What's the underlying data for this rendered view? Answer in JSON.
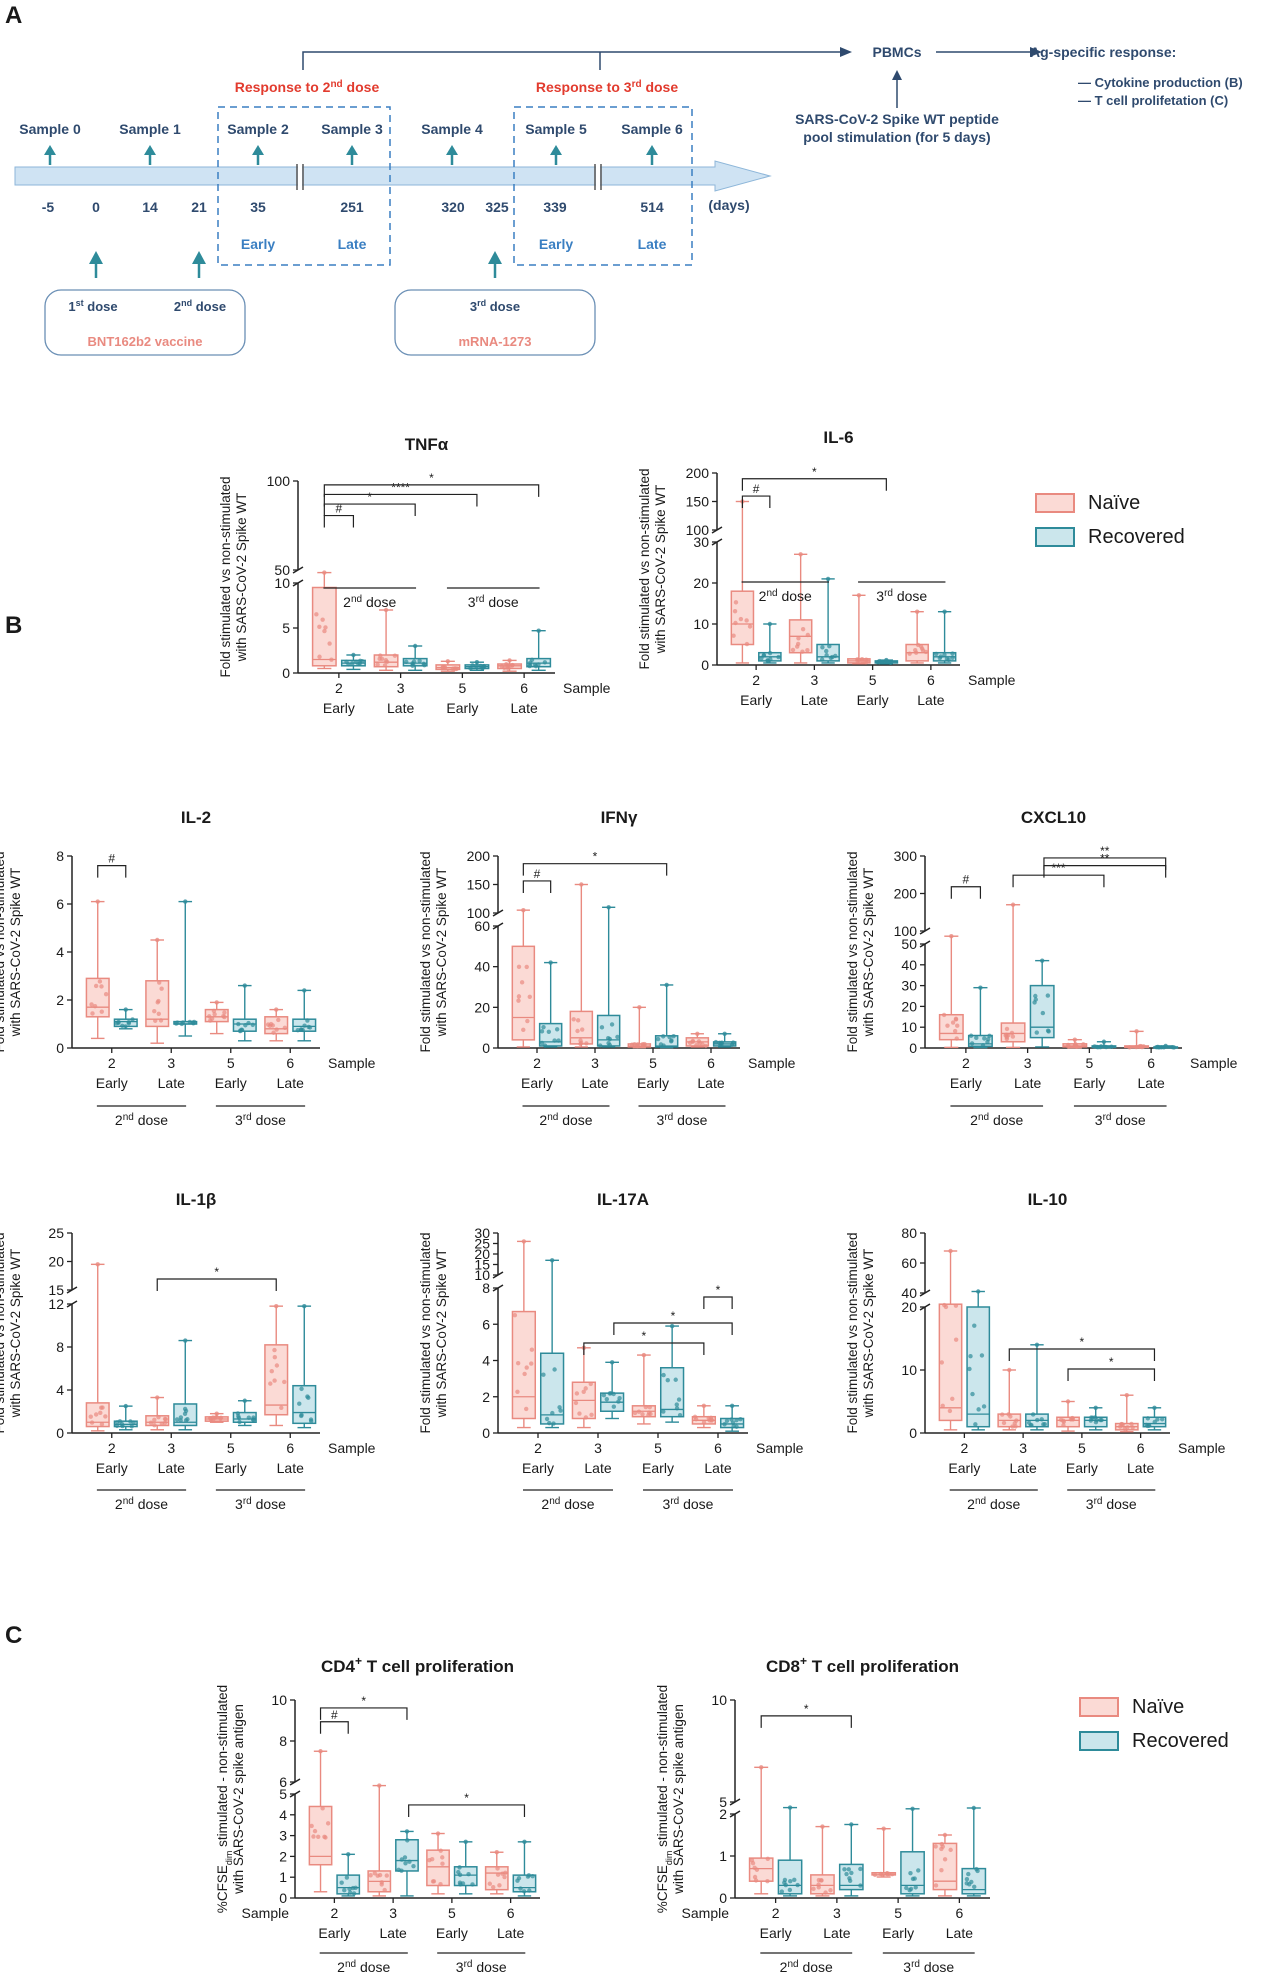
{
  "figure": {
    "panel_labels": [
      "A",
      "B",
      "C"
    ],
    "colors": {
      "naive": "#e98a80",
      "naive_fill": "#fbdad5",
      "recovered": "#2e8b9a",
      "recovered_fill": "#cbe6ec",
      "timeline_text": "#2f4a6e",
      "accent_red": "#e23b2e",
      "accent_blue": "#3a7fc2",
      "arrow": "#2e8b9a"
    }
  },
  "timeline": {
    "samples": [
      "Sample 0",
      "Sample 1",
      "Sample 2",
      "Sample 3",
      "Sample 4",
      "Sample 5",
      "Sample 6"
    ],
    "days": [
      "-5",
      "0",
      "14",
      "21",
      "35",
      "251",
      "320",
      "325",
      "339",
      "514"
    ],
    "days_unit": "(days)",
    "early_late": [
      "Early",
      "Late",
      "Early",
      "Late"
    ],
    "response_2nd": {
      "pre": "Response to 2",
      "sup": "nd",
      "post": " dose"
    },
    "response_3rd": {
      "pre": "Response to 3",
      "sup": "rd",
      "post": " dose"
    },
    "dose1": {
      "pre": "1",
      "sup": "st",
      "post": " dose"
    },
    "dose2": {
      "pre": "2",
      "sup": "nd",
      "post": " dose"
    },
    "dose3": {
      "pre": "3",
      "sup": "rd",
      "post": " dose"
    },
    "vaccine1": "BNT162b2 vaccine",
    "vaccine2": "mRNA-1273",
    "pbmcs": "PBMCs",
    "ag_response": "Ag-specific response:",
    "cytokine": "— Cytokine production (B)",
    "tcell": "— T cell prolifetation (C)",
    "stim_line1": "SARS-CoV-2 Spike WT peptide",
    "stim_line2": "pool stimulation (for 5 days)"
  },
  "common": {
    "ylabel_fold_1": "Fold stimulated vs non-stimulated",
    "ylabel_fold_2": "with SARS-CoV-2 Spike WT",
    "ylabel_cfse_1_pre": "%CFSE",
    "ylabel_cfse_1_sub": "dim",
    "ylabel_cfse_1_post": " stimulated - non-stimulated",
    "ylabel_cfse_2": "with SARS-CoV-2 spike antigen",
    "sample_label": "Sample",
    "early": "Early",
    "late": "Late",
    "dose2_group": {
      "pre": "2",
      "sup": "nd",
      "post": " dose"
    },
    "dose3_group": {
      "pre": "3",
      "sup": "rd",
      "post": " dose"
    }
  },
  "legend": {
    "naive": "Naïve",
    "recovered": "Recovered"
  },
  "chart_data": [
    {
      "type": "box",
      "title": "TNFα",
      "categories": [
        "2",
        "3",
        "5",
        "6"
      ],
      "yticks_lower": [
        0,
        5,
        10
      ],
      "yticks_upper": [
        50,
        100
      ],
      "break": true,
      "series": [
        {
          "name": "Naïve",
          "boxes": [
            [
              0.5,
              0.8,
              1.5,
              9.5,
              42
            ],
            [
              0.3,
              0.7,
              1.2,
              2,
              7
            ],
            [
              0.2,
              0.4,
              0.6,
              0.9,
              1.3
            ],
            [
              0.2,
              0.5,
              0.8,
              1.0,
              1.4
            ]
          ]
        },
        {
          "name": "Recovered",
          "boxes": [
            [
              0.4,
              0.8,
              1.1,
              1.4,
              2
            ],
            [
              0.3,
              0.8,
              1.1,
              1.6,
              3
            ],
            [
              0.3,
              0.5,
              0.7,
              0.9,
              1.2
            ],
            [
              0.3,
              0.7,
              1.1,
              1.6,
              4.7
            ]
          ]
        }
      ],
      "significance": [
        "#",
        "*",
        "****",
        "*"
      ]
    },
    {
      "type": "box",
      "title": "IL-6",
      "categories": [
        "2",
        "3",
        "5",
        "6"
      ],
      "yticks_lower": [
        0,
        10,
        20,
        30
      ],
      "yticks_upper": [
        100,
        150,
        200
      ],
      "break": true,
      "series": [
        {
          "name": "Naïve",
          "boxes": [
            [
              0.5,
              5,
              10,
              18,
              150
            ],
            [
              0.5,
              3,
              7,
              11,
              27
            ],
            [
              0.3,
              0.5,
              1,
              1.5,
              17
            ],
            [
              0.5,
              1,
              3,
              5,
              13
            ]
          ]
        },
        {
          "name": "Recovered",
          "boxes": [
            [
              0.5,
              1,
              2,
              3,
              10
            ],
            [
              0.5,
              1,
              2,
              5,
              21
            ],
            [
              0.3,
              0.5,
              0.8,
              1,
              1.2
            ],
            [
              0.5,
              1,
              2,
              3,
              13
            ]
          ]
        }
      ],
      "significance": [
        "#",
        "*"
      ]
    },
    {
      "type": "box",
      "title": "IL-2",
      "categories": [
        "2",
        "3",
        "5",
        "6"
      ],
      "yticks": [
        0,
        2,
        4,
        6,
        8
      ],
      "break": false,
      "series": [
        {
          "name": "Naïve",
          "boxes": [
            [
              0.4,
              1.3,
              1.7,
              2.9,
              6.1
            ],
            [
              0.2,
              0.9,
              1.2,
              2.8,
              4.5
            ],
            [
              0.6,
              1.1,
              1.3,
              1.6,
              1.9
            ],
            [
              0.3,
              0.6,
              0.8,
              1.3,
              1.6
            ]
          ]
        },
        {
          "name": "Recovered",
          "boxes": [
            [
              0.8,
              0.9,
              1.1,
              1.2,
              1.6
            ],
            [
              0.5,
              1.0,
              1.0,
              1.1,
              6.1
            ],
            [
              0.3,
              0.7,
              1.0,
              1.2,
              2.6
            ],
            [
              0.3,
              0.7,
              0.9,
              1.2,
              2.4
            ]
          ]
        }
      ],
      "significance": [
        "#"
      ]
    },
    {
      "type": "box",
      "title": "IFNγ",
      "categories": [
        "2",
        "3",
        "5",
        "6"
      ],
      "yticks_lower": [
        0,
        20,
        40,
        60
      ],
      "yticks_upper": [
        100,
        150,
        200
      ],
      "break": true,
      "series": [
        {
          "name": "Naïve",
          "boxes": [
            [
              0.5,
              4,
              15,
              50,
              105
            ],
            [
              0.5,
              2,
              5,
              18,
              150
            ],
            [
              0.2,
              0.5,
              1,
              2,
              20
            ],
            [
              0.5,
              1,
              3,
              5,
              7
            ]
          ]
        },
        {
          "name": "Recovered",
          "boxes": [
            [
              0.5,
              1,
              3,
              12,
              42
            ],
            [
              0.5,
              1,
              4,
              16,
              110
            ],
            [
              0.2,
              0.5,
              1,
              6,
              31
            ],
            [
              0.5,
              1,
              2,
              3,
              7
            ]
          ]
        }
      ],
      "significance": [
        "#",
        "*"
      ]
    },
    {
      "type": "box",
      "title": "CXCL10",
      "categories": [
        "2",
        "3",
        "5",
        "6"
      ],
      "yticks_lower": [
        0,
        10,
        20,
        30,
        40,
        50
      ],
      "yticks_upper": [
        100,
        200,
        300
      ],
      "break": true,
      "series": [
        {
          "name": "Naïve",
          "boxes": [
            [
              0.3,
              4,
              7,
              16,
              80
            ],
            [
              0.3,
              3,
              7,
              12,
              170
            ],
            [
              0.1,
              0.5,
              1,
              2,
              4
            ],
            [
              0.1,
              0.3,
              0.5,
              1,
              8
            ]
          ]
        },
        {
          "name": "Recovered",
          "boxes": [
            [
              0.2,
              0.8,
              2,
              6,
              29
            ],
            [
              0.5,
              5,
              10,
              30,
              42
            ],
            [
              0.1,
              0.3,
              0.5,
              1,
              3
            ],
            [
              0.1,
              0.2,
              0.3,
              0.5,
              1
            ]
          ]
        }
      ],
      "significance": [
        "#",
        "***",
        "**",
        "**"
      ]
    },
    {
      "type": "box",
      "title": "IL-1β",
      "categories": [
        "2",
        "3",
        "5",
        "6"
      ],
      "yticks_lower": [
        0,
        4,
        8,
        12
      ],
      "yticks_upper": [
        15,
        20,
        25
      ],
      "break": true,
      "series": [
        {
          "name": "Naïve",
          "boxes": [
            [
              0.2,
              0.6,
              1.0,
              2.8,
              19.5
            ],
            [
              0.3,
              0.7,
              1.0,
              1.6,
              3.3
            ],
            [
              1.0,
              1.1,
              1.3,
              1.5,
              1.8
            ],
            [
              0.7,
              1.7,
              2.6,
              8.2,
              11.8
            ]
          ]
        },
        {
          "name": "Recovered",
          "boxes": [
            [
              0.3,
              0.6,
              0.8,
              1.1,
              2.5
            ],
            [
              0.3,
              0.7,
              1.0,
              2.7,
              8.6
            ],
            [
              0.7,
              1.0,
              1.3,
              1.9,
              3.0
            ],
            [
              0.5,
              0.9,
              1.9,
              4.4,
              11.8
            ]
          ]
        }
      ],
      "significance": [
        "*"
      ]
    },
    {
      "type": "box",
      "title": "IL-17A",
      "categories": [
        "2",
        "3",
        "5",
        "6"
      ],
      "yticks_lower": [
        0,
        2,
        4,
        6,
        8
      ],
      "yticks_upper": [
        10,
        15,
        20,
        25,
        30
      ],
      "break": true,
      "series": [
        {
          "name": "Naïve",
          "boxes": [
            [
              0.3,
              0.8,
              2,
              6.7,
              26
            ],
            [
              0.3,
              0.8,
              1.8,
              2.8,
              4.7
            ],
            [
              0.5,
              0.9,
              1.2,
              1.5,
              4.3
            ],
            [
              0.3,
              0.5,
              0.7,
              0.9,
              1.5
            ]
          ]
        },
        {
          "name": "Recovered",
          "boxes": [
            [
              0.3,
              0.5,
              1,
              4.4,
              17
            ],
            [
              0.8,
              1.2,
              1.7,
              2.2,
              3.9
            ],
            [
              0.6,
              0.9,
              1.3,
              3.6,
              5.9
            ],
            [
              0.1,
              0.3,
              0.5,
              0.8,
              1.5
            ]
          ]
        }
      ],
      "significance": [
        "*",
        "*",
        "*"
      ]
    },
    {
      "type": "box",
      "title": "IL-10",
      "categories": [
        "2",
        "3",
        "5",
        "6"
      ],
      "yticks_lower": [
        0,
        10,
        20
      ],
      "yticks_upper": [
        40,
        60,
        80
      ],
      "break": true,
      "series": [
        {
          "name": "Naïve",
          "boxes": [
            [
              0.5,
              2,
              4,
              24,
              68
            ],
            [
              0.5,
              1,
              2,
              3,
              10
            ],
            [
              0.3,
              1,
              2,
              2.5,
              5
            ],
            [
              0.2,
              0.5,
              1,
              1.5,
              6
            ]
          ]
        },
        {
          "name": "Recovered",
          "boxes": [
            [
              0.5,
              1,
              3,
              20,
              41
            ],
            [
              0.5,
              1,
              2,
              3,
              14
            ],
            [
              0.5,
              1,
              2,
              2.5,
              4
            ],
            [
              0.5,
              1,
              1.5,
              2.5,
              4
            ]
          ]
        }
      ],
      "significance": [
        "*",
        "*"
      ]
    },
    {
      "type": "box",
      "title": "CD4",
      "title_sup": "+",
      "title_post": " T cell proliferation",
      "categories": [
        "2",
        "3",
        "5",
        "6"
      ],
      "yticks_lower": [
        0,
        1,
        2,
        3,
        4,
        5
      ],
      "yticks_upper": [
        6,
        8,
        10
      ],
      "break": true,
      "series": [
        {
          "name": "Naïve",
          "boxes": [
            [
              0.3,
              1.6,
              2,
              4.4,
              7.5
            ],
            [
              0.1,
              0.3,
              0.8,
              1.3,
              5.7
            ],
            [
              0.2,
              0.6,
              1.5,
              2.3,
              3.1
            ],
            [
              0.2,
              0.4,
              1.2,
              1.5,
              2.2
            ]
          ]
        },
        {
          "name": "Recovered",
          "boxes": [
            [
              0.1,
              0.2,
              0.5,
              1.1,
              2.1
            ],
            [
              0.1,
              1.3,
              1.8,
              2.8,
              3.2
            ],
            [
              0.2,
              0.6,
              1.1,
              1.5,
              2.7
            ],
            [
              0.1,
              0.3,
              0.5,
              1.1,
              2.7
            ]
          ]
        }
      ],
      "significance": [
        "#",
        "*",
        "*"
      ]
    },
    {
      "type": "box",
      "title": "CD8",
      "title_sup": "+",
      "title_post": " T cell proliferation",
      "categories": [
        "2",
        "3",
        "5",
        "6"
      ],
      "yticks_lower": [
        0,
        1,
        2
      ],
      "yticks_upper": [
        5,
        10
      ],
      "break": true,
      "series": [
        {
          "name": "Naïve",
          "boxes": [
            [
              0.1,
              0.4,
              0.7,
              0.95,
              6.7
            ],
            [
              0.05,
              0.1,
              0.3,
              0.55,
              1.7
            ],
            [
              0.5,
              0.55,
              0.6,
              0.6,
              1.65
            ],
            [
              0.05,
              0.2,
              0.4,
              1.3,
              1.5
            ]
          ]
        },
        {
          "name": "Recovered",
          "boxes": [
            [
              0.05,
              0.1,
              0.3,
              0.9,
              3.6
            ],
            [
              0.05,
              0.2,
              0.3,
              0.8,
              1.75
            ],
            [
              0.05,
              0.1,
              0.3,
              1.1,
              3.3
            ],
            [
              0.05,
              0.1,
              0.2,
              0.7,
              3.5
            ]
          ]
        }
      ],
      "significance": [
        "*"
      ]
    }
  ]
}
